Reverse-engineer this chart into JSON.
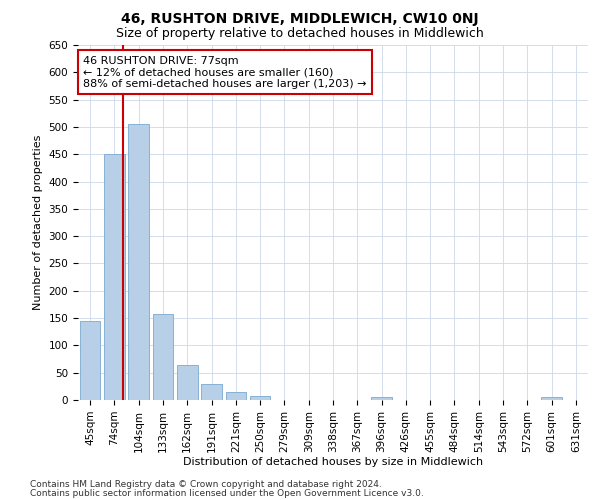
{
  "title": "46, RUSHTON DRIVE, MIDDLEWICH, CW10 0NJ",
  "subtitle": "Size of property relative to detached houses in Middlewich",
  "xlabel": "Distribution of detached houses by size in Middlewich",
  "ylabel": "Number of detached properties",
  "categories": [
    "45sqm",
    "74sqm",
    "104sqm",
    "133sqm",
    "162sqm",
    "191sqm",
    "221sqm",
    "250sqm",
    "279sqm",
    "309sqm",
    "338sqm",
    "367sqm",
    "396sqm",
    "426sqm",
    "455sqm",
    "484sqm",
    "514sqm",
    "543sqm",
    "572sqm",
    "601sqm",
    "631sqm"
  ],
  "values": [
    145,
    450,
    505,
    157,
    65,
    30,
    14,
    8,
    0,
    0,
    0,
    0,
    5,
    0,
    0,
    0,
    0,
    0,
    0,
    5,
    0
  ],
  "bar_color": "#b8cfe8",
  "bar_edge_color": "#7aaad0",
  "red_line_x": 1.35,
  "annotation_text": "46 RUSHTON DRIVE: 77sqm\n← 12% of detached houses are smaller (160)\n88% of semi-detached houses are larger (1,203) →",
  "annotation_box_color": "#ffffff",
  "annotation_box_edge_color": "#cc0000",
  "red_line_color": "#cc0000",
  "ylim": [
    0,
    650
  ],
  "yticks": [
    0,
    50,
    100,
    150,
    200,
    250,
    300,
    350,
    400,
    450,
    500,
    550,
    600,
    650
  ],
  "footer_line1": "Contains HM Land Registry data © Crown copyright and database right 2024.",
  "footer_line2": "Contains public sector information licensed under the Open Government Licence v3.0.",
  "bg_color": "#ffffff",
  "grid_color": "#ccd9e8",
  "title_fontsize": 10,
  "subtitle_fontsize": 9,
  "axis_label_fontsize": 8,
  "tick_fontsize": 7.5,
  "annotation_fontsize": 8,
  "footer_fontsize": 6.5
}
